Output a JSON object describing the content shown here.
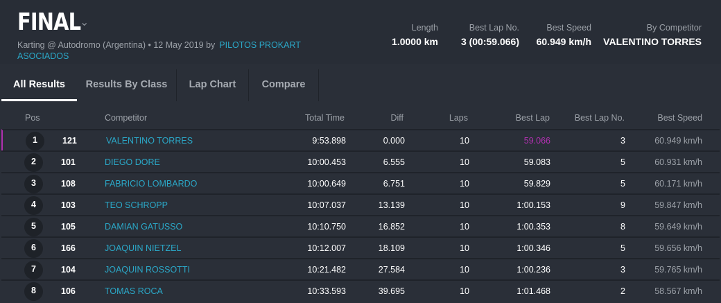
{
  "header": {
    "title": "FINAL",
    "subtitle": "Karting @ Autodromo (Argentina) • 12 May 2019 by",
    "organizer": "PILOTOS PROKART ASOCIADOS",
    "stats": [
      {
        "label": "Length",
        "value": "1.0000 km"
      },
      {
        "label": "Best Lap No.",
        "value": "3 (00:59.066)"
      },
      {
        "label": "Best Speed",
        "value": "60.949 km/h"
      },
      {
        "label": "By Competitor",
        "value": "VALENTINO TORRES"
      }
    ]
  },
  "tabs": [
    {
      "label": "All Results",
      "active": true
    },
    {
      "label": "Results By Class"
    },
    {
      "label": "Lap Chart"
    },
    {
      "label": "Compare"
    }
  ],
  "table": {
    "columns": [
      "Pos",
      "Competitor",
      "Total Time",
      "Diff",
      "Laps",
      "Best Lap",
      "Best Lap No.",
      "Best Speed"
    ],
    "rows": [
      {
        "pos": "1",
        "no": "121",
        "name": "VALENTINO TORRES",
        "total": "9:53.898",
        "diff": "0.000",
        "laps": "10",
        "best": "59.066",
        "bestno": "3",
        "speed": "60.949 km/h"
      },
      {
        "pos": "2",
        "no": "101",
        "name": "DIEGO DORE",
        "total": "10:00.453",
        "diff": "6.555",
        "laps": "10",
        "best": "59.083",
        "bestno": "5",
        "speed": "60.931 km/h"
      },
      {
        "pos": "3",
        "no": "108",
        "name": "FABRICIO LOMBARDO",
        "total": "10:00.649",
        "diff": "6.751",
        "laps": "10",
        "best": "59.829",
        "bestno": "5",
        "speed": "60.171 km/h"
      },
      {
        "pos": "4",
        "no": "103",
        "name": "TEO SCHROPP",
        "total": "10:07.037",
        "diff": "13.139",
        "laps": "10",
        "best": "1:00.153",
        "bestno": "9",
        "speed": "59.847 km/h"
      },
      {
        "pos": "5",
        "no": "105",
        "name": "DAMIAN GATUSSO",
        "total": "10:10.750",
        "diff": "16.852",
        "laps": "10",
        "best": "1:00.353",
        "bestno": "8",
        "speed": "59.649 km/h"
      },
      {
        "pos": "6",
        "no": "166",
        "name": "JOAQUIN NIETZEL",
        "total": "10:12.007",
        "diff": "18.109",
        "laps": "10",
        "best": "1:00.346",
        "bestno": "5",
        "speed": "59.656 km/h"
      },
      {
        "pos": "7",
        "no": "104",
        "name": "JOAQUIN ROSSOTTI",
        "total": "10:21.482",
        "diff": "27.584",
        "laps": "10",
        "best": "1:00.236",
        "bestno": "3",
        "speed": "59.765 km/h"
      },
      {
        "pos": "8",
        "no": "106",
        "name": "TOMAS ROCA",
        "total": "10:33.593",
        "diff": "39.695",
        "laps": "10",
        "best": "1:01.468",
        "bestno": "2",
        "speed": "58.567 km/h"
      }
    ]
  },
  "colors": {
    "accent": "#2ba8c8",
    "fastest": "#b030b0"
  }
}
